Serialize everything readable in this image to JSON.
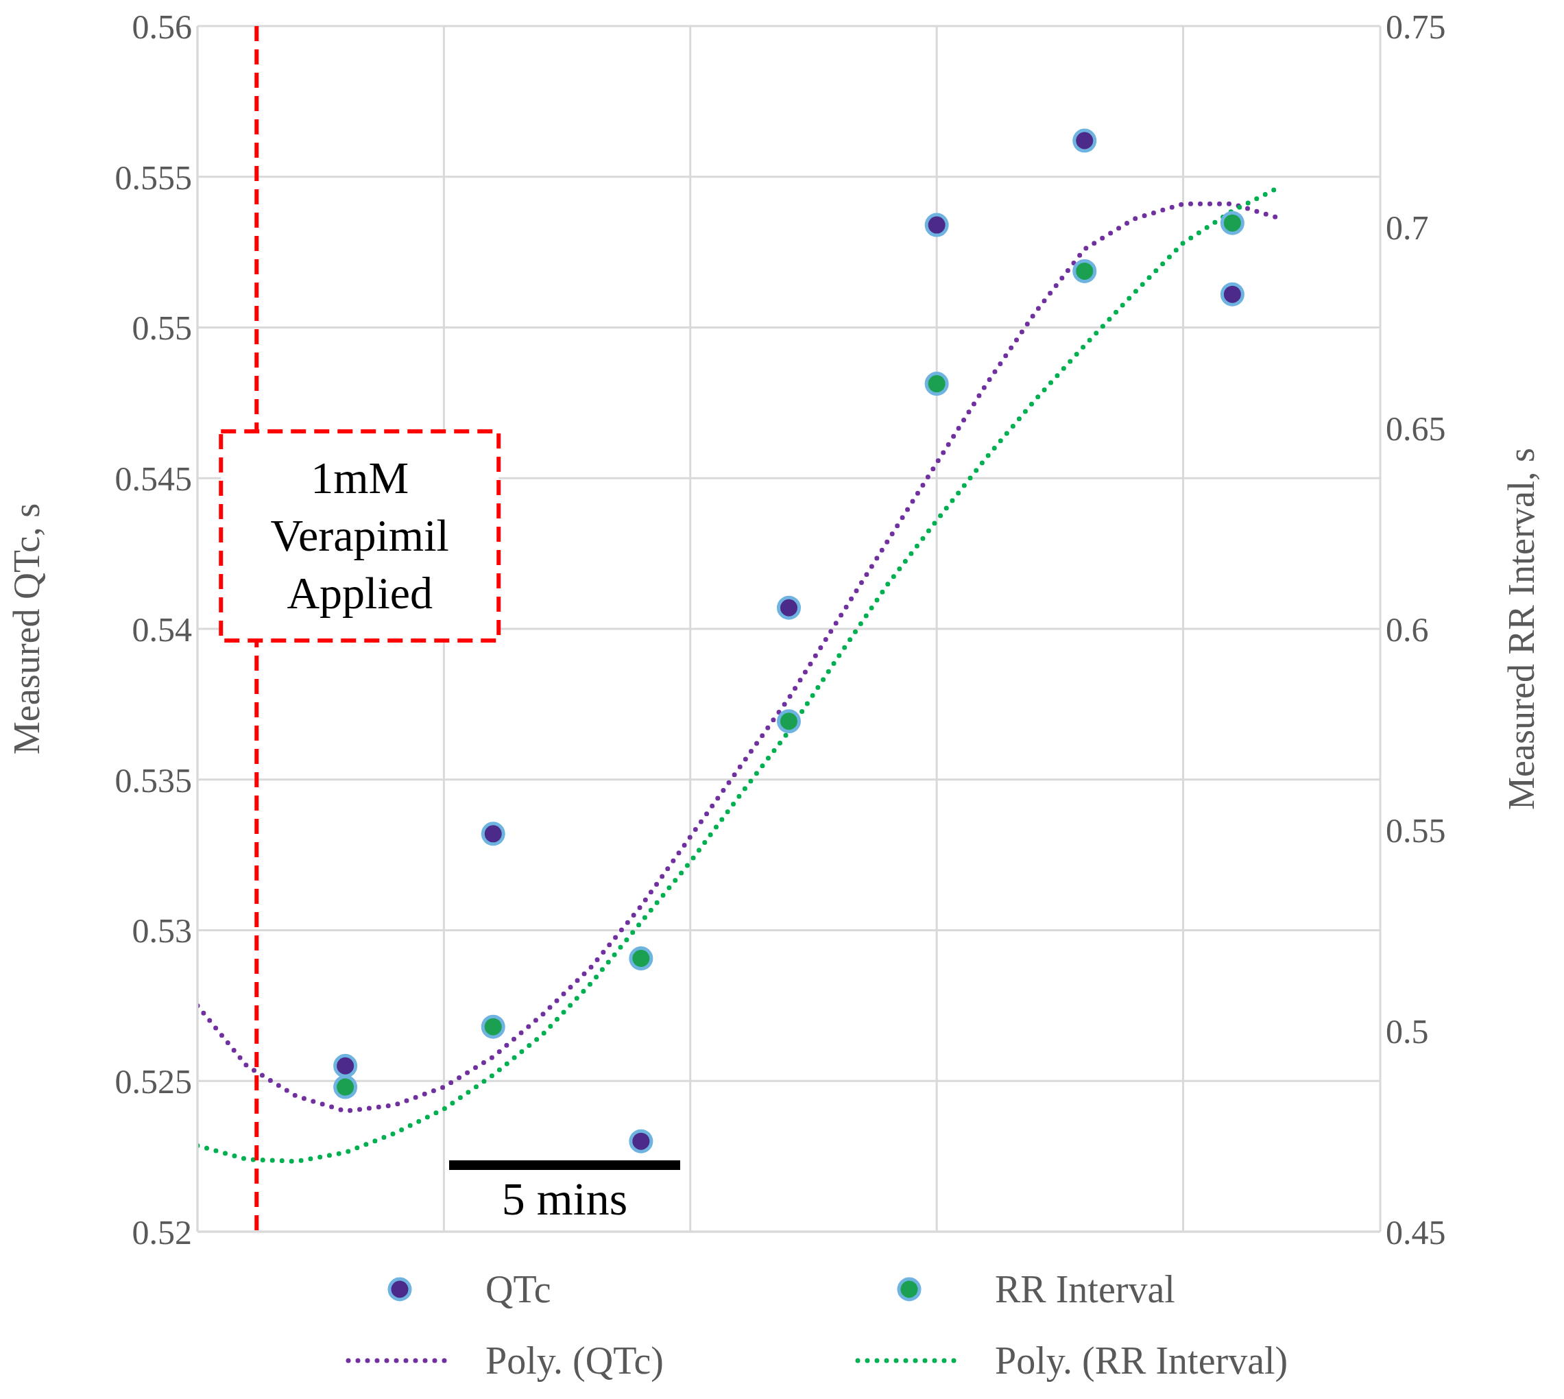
{
  "chart_data": {
    "type": "scatter",
    "ylabel": "Measured QTc, s",
    "y2label": "Measured RR Interval, s",
    "categories": [
      null,
      null,
      null,
      null,
      null,
      null,
      null,
      null,
      null,
      null,
      null,
      null,
      null,
      null,
      null,
      null,
      null,
      null,
      null,
      null,
      null,
      null,
      null,
      null,
      null
    ],
    "ylim": [
      0.52,
      0.56
    ],
    "yticks": [
      0.52,
      0.525,
      0.53,
      0.535,
      0.54,
      0.545,
      0.55,
      0.555,
      0.56
    ],
    "y2lim": [
      0.45,
      0.75
    ],
    "y2ticks": [
      0.45,
      0.5,
      0.55,
      0.6,
      0.65,
      0.7,
      0.75
    ],
    "grid": true,
    "legend": "bottom",
    "series": [
      {
        "name": "QTc",
        "color": "#4b2a8a",
        "marker": "circle",
        "values": [
          null,
          null,
          null,
          0.5255,
          null,
          null,
          0.5332,
          null,
          null,
          0.523,
          null,
          null,
          0.5407,
          null,
          null,
          0.5534,
          null,
          null,
          0.5562,
          null,
          null,
          0.5511,
          null,
          null,
          null
        ]
      },
      {
        "name": "RR Interval",
        "color": "#1aa050",
        "marker": "circle",
        "axis": "y2",
        "values": [
          null,
          null,
          null,
          0.486,
          null,
          null,
          0.501,
          null,
          null,
          0.518,
          null,
          null,
          0.577,
          null,
          null,
          0.661,
          null,
          null,
          0.689,
          null,
          null,
          0.701,
          null,
          null,
          null
        ]
      },
      {
        "name": "Poly. (QTc)",
        "type": "line",
        "line_style": "dotted",
        "marker": "none",
        "color": "#7030a0",
        "values": [
          0.5275,
          0.5255,
          0.5245,
          0.524,
          0.5242,
          0.5248,
          0.5258,
          0.5272,
          0.5288,
          0.5308,
          0.5331,
          0.5354,
          0.5377,
          0.5403,
          0.5429,
          0.5455,
          0.5481,
          0.5505,
          0.5526,
          0.5536,
          0.5541,
          0.5541,
          0.5536,
          null,
          null
        ]
      },
      {
        "name": "Poly. (RR Interval)",
        "type": "line",
        "line_style": "dotted",
        "marker": "none",
        "color": "#00b050",
        "axis": "y2",
        "values": [
          0.4714,
          0.468,
          0.4675,
          0.4697,
          0.4745,
          0.4805,
          0.489,
          0.499,
          0.512,
          0.527,
          0.542,
          0.5585,
          0.5745,
          0.593,
          0.611,
          0.627,
          0.6425,
          0.657,
          0.6705,
          0.6835,
          0.696,
          0.704,
          0.7102,
          null,
          null
        ]
      }
    ],
    "annotations": [
      "1mM Verapimil Applied",
      "5 mins"
    ]
  }
}
